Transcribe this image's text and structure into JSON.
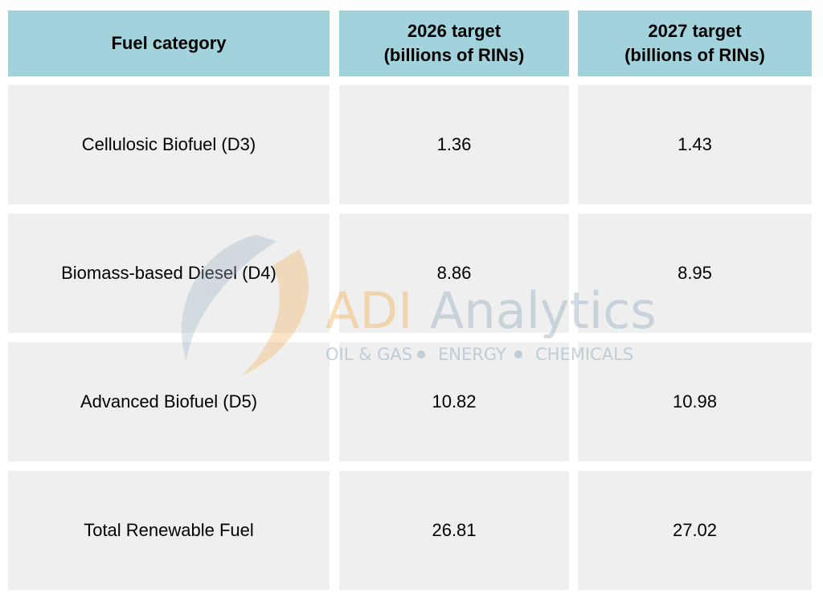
{
  "table": {
    "header": [
      "Fuel category",
      "2026 target\n(billions of RINs)",
      "2027 target\n(billions of RINs)"
    ],
    "rows": [
      [
        "Cellulosic Biofuel (D3)",
        "1.36",
        "1.43"
      ],
      [
        "Biomass-based Diesel (D4)",
        "8.86",
        "8.95"
      ],
      [
        "Advanced Biofuel (D5)",
        "10.82",
        "10.98"
      ],
      [
        "Total Renewable Fuel",
        "26.81",
        "27.02"
      ]
    ]
  },
  "watermark": {
    "brand": "ADI",
    "name": "Analytics",
    "tagline": [
      "OIL & GAS",
      "ENERGY",
      "CHEMICALS"
    ]
  }
}
